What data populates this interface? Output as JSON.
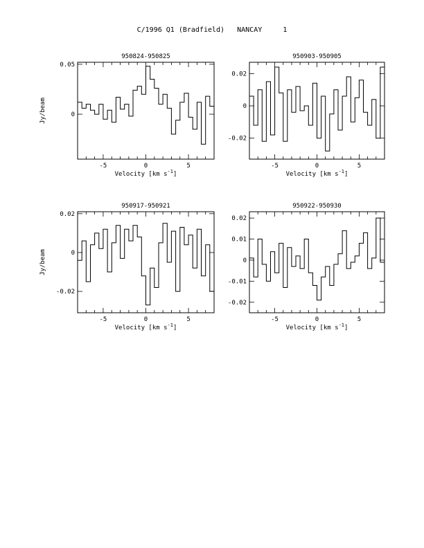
{
  "page": {
    "title": "C/1996 Q1 (Bradfield)   NANCAY     1"
  },
  "chart_data": [
    {
      "type": "line",
      "title": "950824-950825",
      "xlabel": "Velocity [km s",
      "xlabel_sup": "-1",
      "xlabel_close": "]",
      "ylabel": "Jy/beam",
      "xlim": [
        -8,
        8
      ],
      "ylim": [
        -0.045,
        0.052
      ],
      "xticks": [
        -5,
        0,
        5
      ],
      "xtick_labels": [
        "-5",
        "0",
        "5"
      ],
      "yticks": [
        0.05,
        0
      ],
      "ytick_labels": [
        "0.05",
        "0"
      ],
      "x": [
        -8.0,
        -7.5,
        -7.0,
        -6.5,
        -6.0,
        -5.5,
        -5.0,
        -4.5,
        -4.0,
        -3.5,
        -3.0,
        -2.5,
        -2.0,
        -1.5,
        -1.0,
        -0.5,
        0.0,
        0.5,
        1.0,
        1.5,
        2.0,
        2.5,
        3.0,
        3.5,
        4.0,
        4.5,
        5.0,
        5.5,
        6.0,
        6.5,
        7.0,
        7.5
      ],
      "values": [
        0.012,
        0.006,
        0.01,
        0.004,
        0.0,
        0.01,
        -0.005,
        0.004,
        -0.008,
        0.017,
        0.005,
        0.01,
        -0.002,
        0.024,
        0.028,
        0.02,
        0.048,
        0.035,
        0.026,
        0.01,
        0.02,
        0.006,
        -0.02,
        -0.006,
        0.012,
        0.021,
        -0.003,
        -0.015,
        0.012,
        -0.03,
        0.018,
        0.008
      ]
    },
    {
      "type": "line",
      "title": "950903-950905",
      "xlabel": "Velocity [km s",
      "xlabel_sup": "-1",
      "xlabel_close": "]",
      "ylabel": "",
      "xlim": [
        -8,
        8
      ],
      "ylim": [
        -0.033,
        0.027
      ],
      "xticks": [
        -5,
        0,
        5
      ],
      "xtick_labels": [
        "-5",
        "0",
        "5"
      ],
      "yticks": [
        0.02,
        0,
        -0.02
      ],
      "ytick_labels": [
        "0.02",
        "0",
        "-0.02"
      ],
      "x": [
        -8.0,
        -7.5,
        -7.0,
        -6.5,
        -6.0,
        -5.5,
        -5.0,
        -4.5,
        -4.0,
        -3.5,
        -3.0,
        -2.5,
        -2.0,
        -1.5,
        -1.0,
        -0.5,
        0.0,
        0.5,
        1.0,
        1.5,
        2.0,
        2.5,
        3.0,
        3.5,
        4.0,
        4.5,
        5.0,
        5.5,
        6.0,
        6.5,
        7.0,
        7.5
      ],
      "values": [
        0.006,
        -0.012,
        0.01,
        -0.022,
        0.015,
        -0.018,
        0.024,
        0.008,
        -0.022,
        0.01,
        -0.004,
        0.012,
        -0.003,
        0.0,
        -0.012,
        0.014,
        -0.02,
        0.006,
        -0.028,
        -0.005,
        0.01,
        -0.015,
        0.006,
        0.018,
        -0.01,
        0.005,
        0.016,
        -0.004,
        -0.012,
        0.004,
        -0.02,
        0.024
      ]
    },
    {
      "type": "line",
      "title": "950917-950921",
      "xlabel": "Velocity [km s",
      "xlabel_sup": "-1",
      "xlabel_close": "]",
      "ylabel": "Jy/beam",
      "xlim": [
        -8,
        8
      ],
      "ylim": [
        -0.031,
        0.021
      ],
      "xticks": [
        -5,
        0,
        5
      ],
      "xtick_labels": [
        "-5",
        "0",
        "5"
      ],
      "yticks": [
        0.02,
        0,
        -0.02
      ],
      "ytick_labels": [
        "0.02",
        "0",
        "-0.02"
      ],
      "x": [
        -8.0,
        -7.5,
        -7.0,
        -6.5,
        -6.0,
        -5.5,
        -5.0,
        -4.5,
        -4.0,
        -3.5,
        -3.0,
        -2.5,
        -2.0,
        -1.5,
        -1.0,
        -0.5,
        0.0,
        0.5,
        1.0,
        1.5,
        2.0,
        2.5,
        3.0,
        3.5,
        4.0,
        4.5,
        5.0,
        5.5,
        6.0,
        6.5,
        7.0,
        7.5
      ],
      "values": [
        -0.004,
        0.006,
        -0.015,
        0.004,
        0.01,
        0.002,
        0.012,
        -0.01,
        0.005,
        0.014,
        -0.003,
        0.012,
        0.006,
        0.014,
        0.008,
        -0.012,
        -0.027,
        -0.008,
        -0.018,
        0.005,
        0.015,
        -0.005,
        0.011,
        -0.02,
        0.013,
        0.004,
        0.009,
        -0.008,
        0.012,
        -0.012,
        0.004,
        -0.02
      ]
    },
    {
      "type": "line",
      "title": "950922-950930",
      "xlabel": "Velocity [km s",
      "xlabel_sup": "-1",
      "xlabel_close": "]",
      "ylabel": "",
      "xlim": [
        -8,
        8
      ],
      "ylim": [
        -0.025,
        0.023
      ],
      "xticks": [
        -5,
        0,
        5
      ],
      "xtick_labels": [
        "-5",
        "0",
        "5"
      ],
      "yticks": [
        0.02,
        0.01,
        0,
        -0.01,
        -0.02
      ],
      "ytick_labels": [
        "0.02",
        "0.01",
        "0",
        "-0.01",
        "-0.02"
      ],
      "x": [
        -8.0,
        -7.5,
        -7.0,
        -6.5,
        -6.0,
        -5.5,
        -5.0,
        -4.5,
        -4.0,
        -3.5,
        -3.0,
        -2.5,
        -2.0,
        -1.5,
        -1.0,
        -0.5,
        0.0,
        0.5,
        1.0,
        1.5,
        2.0,
        2.5,
        3.0,
        3.5,
        4.0,
        4.5,
        5.0,
        5.5,
        6.0,
        6.5,
        7.0,
        7.5
      ],
      "values": [
        0.001,
        -0.008,
        0.01,
        -0.002,
        -0.01,
        0.004,
        -0.006,
        0.008,
        -0.013,
        0.006,
        -0.003,
        0.002,
        -0.004,
        0.01,
        -0.006,
        -0.012,
        -0.019,
        -0.008,
        -0.003,
        -0.012,
        -0.002,
        0.003,
        0.014,
        -0.004,
        -0.001,
        0.002,
        0.008,
        0.013,
        -0.004,
        0.001,
        0.02,
        -0.001
      ]
    }
  ]
}
